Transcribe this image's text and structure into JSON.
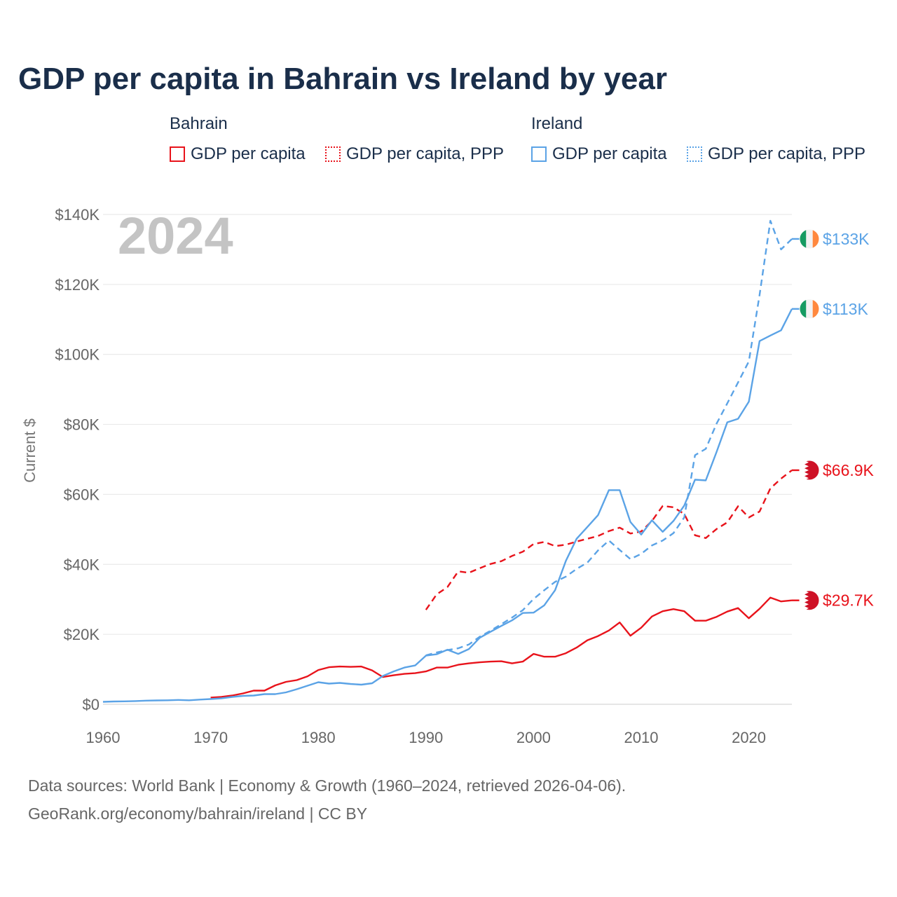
{
  "title": "GDP per capita in Bahrain vs Ireland by year",
  "legend": {
    "groups": [
      {
        "name": "Bahrain",
        "color": "#e8131b",
        "items": [
          "GDP per capita",
          "GDP per capita, PPP"
        ]
      },
      {
        "name": "Ireland",
        "color": "#5ba3e6",
        "items": [
          "GDP per capita",
          "GDP per capita, PPP"
        ]
      }
    ]
  },
  "footer": {
    "line1": "Data sources: World Bank | Economy & Growth (1960–2024, retrieved 2026-04-06).",
    "line2": "GeoRank.org/economy/bahrain/ireland | CC BY"
  },
  "chart_data": {
    "type": "line",
    "title": "GDP per capita in Bahrain vs Ireland by year",
    "current_year_label": "2024",
    "ylabel": "Current $",
    "xlabel": "",
    "xlim": [
      1960,
      2024
    ],
    "ylim": [
      0,
      140000
    ],
    "x_ticks": [
      1960,
      1970,
      1980,
      1990,
      2000,
      2010,
      2020
    ],
    "x_tick_labels": [
      "1960",
      "1970",
      "1980",
      "1990",
      "2000",
      "2010",
      "2020"
    ],
    "y_ticks": [
      0,
      20000,
      40000,
      60000,
      80000,
      100000,
      120000,
      140000
    ],
    "y_tick_labels": [
      "$0",
      "$20K",
      "$40K",
      "$60K",
      "$80K",
      "$100K",
      "$120K",
      "$140K"
    ],
    "grid": true,
    "series": [
      {
        "name": "Bahrain GDP per capita",
        "country": "Bahrain",
        "style": "solid",
        "color": "#e8131b",
        "end_label": "$29.7K",
        "end_value": 29700,
        "flag": "bahrain-flag",
        "points": [
          [
            1970,
            1900
          ],
          [
            1971,
            2100
          ],
          [
            1972,
            2500
          ],
          [
            1973,
            3100
          ],
          [
            1974,
            3900
          ],
          [
            1975,
            3900
          ],
          [
            1976,
            5400
          ],
          [
            1977,
            6400
          ],
          [
            1978,
            6900
          ],
          [
            1979,
            8000
          ],
          [
            1980,
            9800
          ],
          [
            1981,
            10600
          ],
          [
            1982,
            10800
          ],
          [
            1983,
            10700
          ],
          [
            1984,
            10800
          ],
          [
            1985,
            9700
          ],
          [
            1986,
            7800
          ],
          [
            1987,
            8300
          ],
          [
            1988,
            8700
          ],
          [
            1989,
            8900
          ],
          [
            1990,
            9400
          ],
          [
            1991,
            10500
          ],
          [
            1992,
            10500
          ],
          [
            1993,
            11300
          ],
          [
            1994,
            11700
          ],
          [
            1995,
            12000
          ],
          [
            1996,
            12200
          ],
          [
            1997,
            12300
          ],
          [
            1998,
            11700
          ],
          [
            1999,
            12200
          ],
          [
            2000,
            14400
          ],
          [
            2001,
            13600
          ],
          [
            2002,
            13600
          ],
          [
            2003,
            14600
          ],
          [
            2004,
            16200
          ],
          [
            2005,
            18300
          ],
          [
            2006,
            19500
          ],
          [
            2007,
            21100
          ],
          [
            2008,
            23400
          ],
          [
            2009,
            19600
          ],
          [
            2010,
            21900
          ],
          [
            2011,
            25100
          ],
          [
            2012,
            26600
          ],
          [
            2013,
            27200
          ],
          [
            2014,
            26600
          ],
          [
            2015,
            23900
          ],
          [
            2016,
            23900
          ],
          [
            2017,
            25000
          ],
          [
            2018,
            26500
          ],
          [
            2019,
            27500
          ],
          [
            2020,
            24600
          ],
          [
            2021,
            27300
          ],
          [
            2022,
            30500
          ],
          [
            2023,
            29400
          ],
          [
            2024,
            29700
          ]
        ]
      },
      {
        "name": "Bahrain GDP per capita, PPP",
        "country": "Bahrain",
        "style": "dashed",
        "color": "#e8131b",
        "end_label": "$66.9K",
        "end_value": 66900,
        "flag": "bahrain-flag",
        "points": [
          [
            1990,
            27000
          ],
          [
            1991,
            31400
          ],
          [
            1992,
            33500
          ],
          [
            1993,
            38000
          ],
          [
            1994,
            37600
          ],
          [
            1995,
            38900
          ],
          [
            1996,
            40100
          ],
          [
            1997,
            40900
          ],
          [
            1998,
            42400
          ],
          [
            1999,
            43600
          ],
          [
            2000,
            45800
          ],
          [
            2001,
            46400
          ],
          [
            2002,
            45200
          ],
          [
            2003,
            45600
          ],
          [
            2004,
            46500
          ],
          [
            2005,
            47300
          ],
          [
            2006,
            48100
          ],
          [
            2007,
            49500
          ],
          [
            2008,
            50500
          ],
          [
            2009,
            48800
          ],
          [
            2010,
            49400
          ],
          [
            2011,
            52400
          ],
          [
            2012,
            56700
          ],
          [
            2013,
            56300
          ],
          [
            2014,
            54400
          ],
          [
            2015,
            48300
          ],
          [
            2016,
            47500
          ],
          [
            2017,
            50100
          ],
          [
            2018,
            52000
          ],
          [
            2019,
            56600
          ],
          [
            2020,
            53400
          ],
          [
            2021,
            55100
          ],
          [
            2022,
            61700
          ],
          [
            2023,
            64500
          ],
          [
            2024,
            66900
          ]
        ]
      },
      {
        "name": "Ireland GDP per capita",
        "country": "Ireland",
        "style": "solid",
        "color": "#5ba3e6",
        "end_label": "$113K",
        "end_value": 113000,
        "flag": "ireland-flag",
        "points": [
          [
            1960,
            700
          ],
          [
            1961,
            800
          ],
          [
            1962,
            850
          ],
          [
            1963,
            920
          ],
          [
            1964,
            1050
          ],
          [
            1965,
            1100
          ],
          [
            1966,
            1150
          ],
          [
            1967,
            1250
          ],
          [
            1968,
            1150
          ],
          [
            1969,
            1350
          ],
          [
            1970,
            1500
          ],
          [
            1971,
            1700
          ],
          [
            1972,
            2100
          ],
          [
            1973,
            2400
          ],
          [
            1974,
            2500
          ],
          [
            1975,
            2900
          ],
          [
            1976,
            2900
          ],
          [
            1977,
            3400
          ],
          [
            1978,
            4300
          ],
          [
            1979,
            5300
          ],
          [
            1980,
            6300
          ],
          [
            1981,
            5900
          ],
          [
            1982,
            6100
          ],
          [
            1983,
            5800
          ],
          [
            1984,
            5600
          ],
          [
            1985,
            6000
          ],
          [
            1986,
            8100
          ],
          [
            1987,
            9400
          ],
          [
            1988,
            10500
          ],
          [
            1989,
            11100
          ],
          [
            1990,
            13900
          ],
          [
            1991,
            14300
          ],
          [
            1992,
            15600
          ],
          [
            1993,
            14400
          ],
          [
            1994,
            15800
          ],
          [
            1995,
            19000
          ],
          [
            1996,
            20700
          ],
          [
            1997,
            22400
          ],
          [
            1998,
            24000
          ],
          [
            1999,
            26100
          ],
          [
            2000,
            26200
          ],
          [
            2001,
            28300
          ],
          [
            2002,
            32600
          ],
          [
            2003,
            41000
          ],
          [
            2004,
            47300
          ],
          [
            2005,
            50700
          ],
          [
            2006,
            54100
          ],
          [
            2007,
            61200
          ],
          [
            2008,
            61200
          ],
          [
            2009,
            52100
          ],
          [
            2010,
            48500
          ],
          [
            2011,
            52600
          ],
          [
            2012,
            49300
          ],
          [
            2013,
            52400
          ],
          [
            2014,
            56800
          ],
          [
            2015,
            64200
          ],
          [
            2016,
            64000
          ],
          [
            2017,
            72100
          ],
          [
            2018,
            80600
          ],
          [
            2019,
            81600
          ],
          [
            2020,
            86500
          ],
          [
            2021,
            103800
          ],
          [
            2022,
            105400
          ],
          [
            2023,
            106900
          ],
          [
            2024,
            113000
          ]
        ]
      },
      {
        "name": "Ireland GDP per capita, PPP",
        "country": "Ireland",
        "style": "dashed",
        "color": "#5ba3e6",
        "end_label": "$133K",
        "end_value": 133000,
        "flag": "ireland-flag",
        "points": [
          [
            1990,
            14000
          ],
          [
            1991,
            14800
          ],
          [
            1992,
            15500
          ],
          [
            1993,
            16000
          ],
          [
            1994,
            17100
          ],
          [
            1995,
            19300
          ],
          [
            1996,
            21000
          ],
          [
            1997,
            22900
          ],
          [
            1998,
            24800
          ],
          [
            1999,
            26900
          ],
          [
            2000,
            30100
          ],
          [
            2001,
            32600
          ],
          [
            2002,
            35000
          ],
          [
            2003,
            36500
          ],
          [
            2004,
            38700
          ],
          [
            2005,
            40500
          ],
          [
            2006,
            44000
          ],
          [
            2007,
            46800
          ],
          [
            2008,
            44100
          ],
          [
            2009,
            41500
          ],
          [
            2010,
            43000
          ],
          [
            2011,
            45400
          ],
          [
            2012,
            46800
          ],
          [
            2013,
            48900
          ],
          [
            2014,
            53400
          ],
          [
            2015,
            71200
          ],
          [
            2016,
            73000
          ],
          [
            2017,
            80200
          ],
          [
            2018,
            86000
          ],
          [
            2019,
            92000
          ],
          [
            2020,
            98000
          ],
          [
            2021,
            117000
          ],
          [
            2022,
            138200
          ],
          [
            2023,
            130000
          ],
          [
            2024,
            133000
          ]
        ]
      }
    ]
  }
}
